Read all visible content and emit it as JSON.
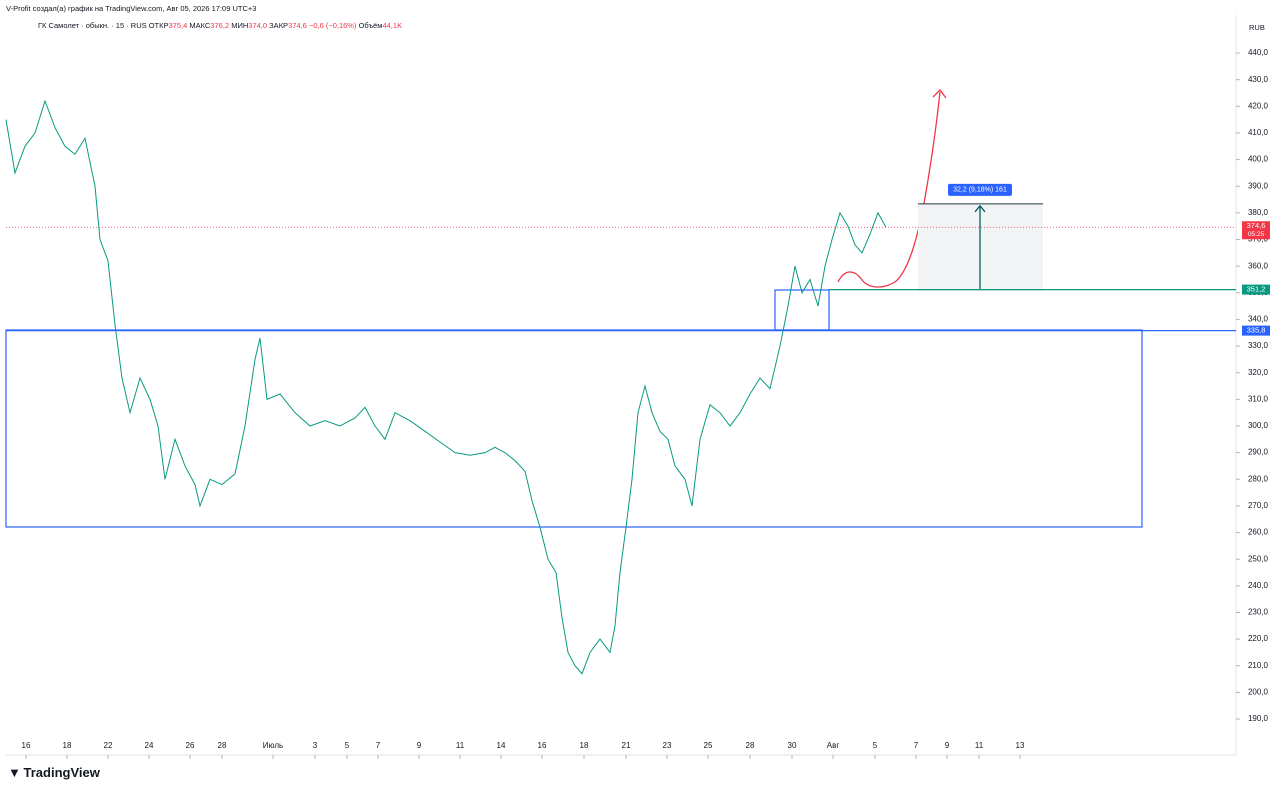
{
  "header": {
    "attribution": "V-Profit создал(а) график на TradingView.com, Авг 05, 2026 17:09 UTC+3",
    "symbol": "ГК Самолет · обыкн. · 15 · RUS",
    "open_label": "ОТКР",
    "open": "375,4",
    "high_label": "МАКС",
    "high": "376,2",
    "low_label": "МИН",
    "low": "374,0",
    "close_label": "ЗАКР",
    "close": "374,6",
    "change": "−0,6 (−0,16%)",
    "volume_label": "Объём",
    "volume": "44,1K"
  },
  "currency": "RUB",
  "logo": "TradingView",
  "chart_data": {
    "type": "line",
    "color": "#089981",
    "x": [
      6,
      15,
      25,
      35,
      45,
      55,
      65,
      75,
      85,
      95,
      100,
      108,
      115,
      122,
      130,
      140,
      150,
      158,
      165,
      175,
      185,
      195,
      200,
      210,
      222,
      235,
      245,
      255,
      260,
      267,
      280,
      295,
      310,
      325,
      340,
      355,
      365,
      375,
      385,
      395,
      410,
      425,
      440,
      455,
      470,
      485,
      495,
      505,
      515,
      525,
      532,
      540,
      548,
      556,
      562,
      568,
      575,
      582,
      590,
      600,
      610,
      615,
      620,
      626,
      632,
      638,
      645,
      652,
      660,
      668,
      675,
      685,
      692,
      700,
      710,
      720,
      730,
      740,
      750,
      760,
      770,
      780,
      788,
      795,
      802,
      810,
      818,
      825,
      832,
      840,
      848,
      855,
      862,
      870,
      878,
      886
    ],
    "values": [
      415,
      395,
      405,
      410,
      422,
      412,
      405,
      402,
      408,
      390,
      370,
      362,
      338,
      318,
      305,
      318,
      310,
      300,
      280,
      295,
      285,
      278,
      270,
      280,
      278,
      282,
      300,
      325,
      333,
      310,
      312,
      305,
      300,
      302,
      300,
      303,
      307,
      300,
      295,
      305,
      302,
      298,
      294,
      290,
      289,
      290,
      292,
      290,
      287,
      283,
      272,
      262,
      250,
      245,
      228,
      215,
      210,
      207,
      215,
      220,
      215,
      225,
      245,
      262,
      280,
      305,
      315,
      305,
      298,
      295,
      285,
      280,
      270,
      295,
      308,
      305,
      300,
      305,
      312,
      318,
      314,
      330,
      345,
      360,
      350,
      355,
      345,
      360,
      370,
      380,
      375,
      368,
      365,
      372,
      380,
      374.6
    ],
    "xlim": [
      0,
      1240
    ],
    "xticks": [
      {
        "value": 26,
        "label": "16"
      },
      {
        "value": 67,
        "label": "18"
      },
      {
        "value": 108,
        "label": "22"
      },
      {
        "value": 149,
        "label": "24"
      },
      {
        "value": 190,
        "label": "26"
      },
      {
        "value": 222,
        "label": "28"
      },
      {
        "value": 273,
        "label": "Июль"
      },
      {
        "value": 315,
        "label": "3"
      },
      {
        "value": 347,
        "label": "5"
      },
      {
        "value": 378,
        "label": "7"
      },
      {
        "value": 419,
        "label": "9"
      },
      {
        "value": 460,
        "label": "11"
      },
      {
        "value": 501,
        "label": "14"
      },
      {
        "value": 542,
        "label": "16"
      },
      {
        "value": 584,
        "label": "18"
      },
      {
        "value": 626,
        "label": "21"
      },
      {
        "value": 667,
        "label": "23"
      },
      {
        "value": 708,
        "label": "25"
      },
      {
        "value": 750,
        "label": "28"
      },
      {
        "value": 792,
        "label": "30"
      },
      {
        "value": 833,
        "label": "Авг"
      },
      {
        "value": 875,
        "label": "5"
      },
      {
        "value": 916,
        "label": "7"
      },
      {
        "value": 947,
        "label": "9"
      },
      {
        "value": 979,
        "label": "11"
      },
      {
        "value": 1020,
        "label": "13"
      }
    ],
    "ylim": [
      176.5,
      452.4
    ],
    "yticks": [
      {
        "value": 190,
        "label": "190,0"
      },
      {
        "value": 200,
        "label": "200,0"
      },
      {
        "value": 210,
        "label": "210,0"
      },
      {
        "value": 220,
        "label": "220,0"
      },
      {
        "value": 230,
        "label": "230,0"
      },
      {
        "value": 240,
        "label": "240,0"
      },
      {
        "value": 250,
        "label": "250,0"
      },
      {
        "value": 260,
        "label": "260,0"
      },
      {
        "value": 270,
        "label": "270,0"
      },
      {
        "value": 280,
        "label": "280,0"
      },
      {
        "value": 290,
        "label": "290,0"
      },
      {
        "value": 300,
        "label": "300,0"
      },
      {
        "value": 310,
        "label": "310,0"
      },
      {
        "value": 320,
        "label": "320,0"
      },
      {
        "value": 330,
        "label": "330,0"
      },
      {
        "value": 340,
        "label": "340,0"
      },
      {
        "value": 350,
        "label": "350,0"
      },
      {
        "value": 360,
        "label": "360,0"
      },
      {
        "value": 370,
        "label": "370,0"
      },
      {
        "value": 380,
        "label": "380,0"
      },
      {
        "value": 390,
        "label": "390,0"
      },
      {
        "value": 400,
        "label": "400,0"
      },
      {
        "value": 410,
        "label": "410,0"
      },
      {
        "value": 420,
        "label": "420,0"
      },
      {
        "value": 430,
        "label": "430,0"
      },
      {
        "value": 440,
        "label": "440,0"
      }
    ],
    "levels": [
      {
        "value": 335.8,
        "label": "335,8",
        "color": "#2962ff"
      },
      {
        "value": 351.2,
        "label": "351,2",
        "color": "#089981"
      }
    ],
    "current": {
      "value": 374.6,
      "label": "374,6",
      "countdown": "05:25",
      "color": "#f23645"
    },
    "measure": {
      "from": 351.2,
      "change": 32.2,
      "label": "32,2 (9,18%) 161"
    }
  }
}
